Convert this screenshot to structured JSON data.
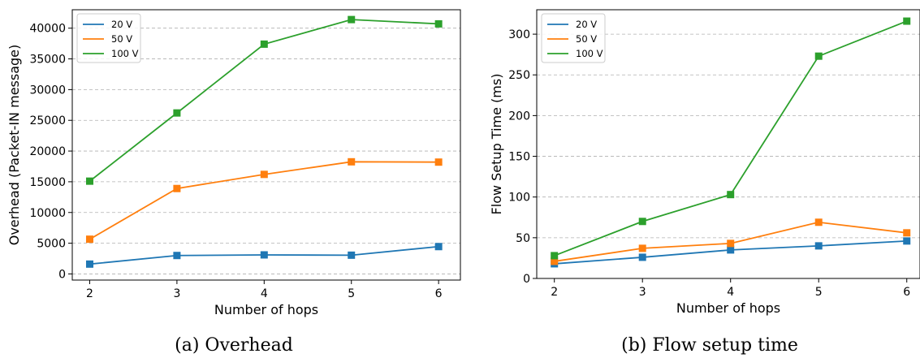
{
  "colors": {
    "20 V": "#1f77b4",
    "50 V": "#ff7f0e",
    "100 V": "#2ca02c"
  },
  "chart_data": [
    {
      "type": "line",
      "caption": "(a) Overhead",
      "xlabel": "Number of hops",
      "ylabel": "Overhead (Packet-IN message)",
      "x": [
        2,
        3,
        4,
        5,
        6
      ],
      "xticks": [
        "2",
        "3",
        "4",
        "5",
        "6"
      ],
      "yticks": [
        0,
        5000,
        10000,
        15000,
        20000,
        25000,
        30000,
        35000,
        40000
      ],
      "ylim": [
        -1000,
        43000
      ],
      "xlim": [
        1.8,
        6.25
      ],
      "grid": "y",
      "legend": "top-left",
      "series": [
        {
          "name": "20 V",
          "values": [
            1600,
            3000,
            3100,
            3050,
            4450
          ]
        },
        {
          "name": "50 V",
          "values": [
            5650,
            13900,
            16200,
            18250,
            18200
          ]
        },
        {
          "name": "100 V",
          "values": [
            15100,
            26200,
            37400,
            41400,
            40700
          ]
        }
      ]
    },
    {
      "type": "line",
      "caption": "(b) Flow setup time",
      "xlabel": "Number of hops",
      "ylabel": "Flow Setup Time (ms)",
      "x": [
        2,
        3,
        4,
        5,
        6
      ],
      "xticks": [
        "2",
        "3",
        "4",
        "5",
        "6"
      ],
      "yticks": [
        0,
        50,
        100,
        150,
        200,
        250,
        300
      ],
      "ylim": [
        0,
        330
      ],
      "xlim": [
        1.8,
        6.15
      ],
      "grid": "y",
      "legend": "top-left",
      "series": [
        {
          "name": "20 V",
          "values": [
            18,
            26,
            35,
            40,
            46
          ]
        },
        {
          "name": "50 V",
          "values": [
            21,
            37,
            43,
            69,
            56
          ]
        },
        {
          "name": "100 V",
          "values": [
            28,
            70,
            103,
            273,
            316
          ]
        }
      ]
    }
  ]
}
